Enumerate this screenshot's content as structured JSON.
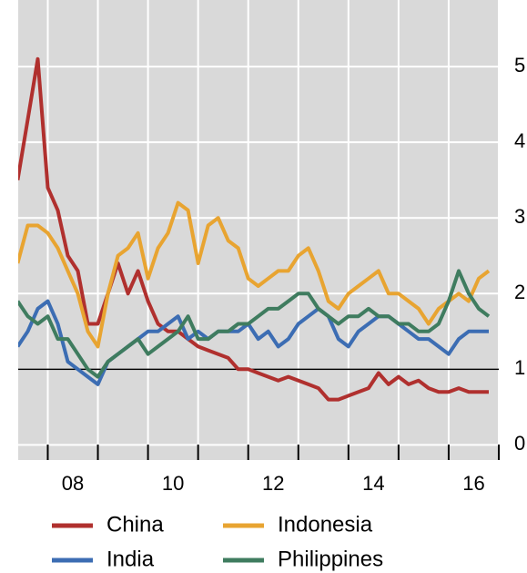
{
  "chart_data": {
    "type": "line",
    "x": [
      2007.4,
      2007.6,
      2007.8,
      2008,
      2008.2,
      2008.4,
      2008.6,
      2008.8,
      2009,
      2009.2,
      2009.4,
      2009.6,
      2009.8,
      2010,
      2010.2,
      2010.4,
      2010.6,
      2010.8,
      2011,
      2011.2,
      2011.4,
      2011.6,
      2011.8,
      2012,
      2012.2,
      2012.4,
      2012.6,
      2012.8,
      2013,
      2013.2,
      2013.4,
      2013.6,
      2013.8,
      2014,
      2014.2,
      2014.4,
      2014.6,
      2014.8,
      2015,
      2015.2,
      2015.4,
      2015.6,
      2015.8,
      2016,
      2016.2,
      2016.4,
      2016.6,
      2016.8
    ],
    "series": [
      {
        "name": "China",
        "color": "#b0302e",
        "values": [
          3.5,
          4.3,
          5.1,
          3.4,
          3.1,
          2.5,
          2.3,
          1.6,
          1.6,
          2.0,
          2.4,
          2.0,
          2.3,
          1.9,
          1.6,
          1.5,
          1.5,
          1.4,
          1.3,
          1.25,
          1.2,
          1.15,
          1.0,
          1.0,
          0.95,
          0.9,
          0.85,
          0.9,
          0.85,
          0.8,
          0.75,
          0.6,
          0.6,
          0.65,
          0.7,
          0.75,
          0.95,
          0.8,
          0.9,
          0.8,
          0.85,
          0.75,
          0.7,
          0.7,
          0.75,
          0.7,
          0.7,
          0.7
        ]
      },
      {
        "name": "India",
        "color": "#3c6db3",
        "values": [
          1.3,
          1.5,
          1.8,
          1.9,
          1.6,
          1.1,
          1.0,
          0.9,
          0.8,
          1.1,
          1.2,
          1.3,
          1.4,
          1.5,
          1.5,
          1.6,
          1.7,
          1.4,
          1.5,
          1.4,
          1.5,
          1.5,
          1.5,
          1.6,
          1.4,
          1.5,
          1.3,
          1.4,
          1.6,
          1.7,
          1.8,
          1.7,
          1.4,
          1.3,
          1.5,
          1.6,
          1.7,
          1.7,
          1.6,
          1.5,
          1.4,
          1.4,
          1.3,
          1.2,
          1.4,
          1.5,
          1.5,
          1.5
        ]
      },
      {
        "name": "Indonesia",
        "color": "#e8a431",
        "values": [
          2.4,
          2.9,
          2.9,
          2.8,
          2.6,
          2.3,
          2.0,
          1.5,
          1.3,
          2.0,
          2.5,
          2.6,
          2.8,
          2.2,
          2.6,
          2.8,
          3.2,
          3.1,
          2.4,
          2.9,
          3.0,
          2.7,
          2.6,
          2.2,
          2.1,
          2.2,
          2.3,
          2.3,
          2.5,
          2.6,
          2.3,
          1.9,
          1.8,
          2.0,
          2.1,
          2.2,
          2.3,
          2.0,
          2.0,
          1.9,
          1.8,
          1.6,
          1.8,
          1.9,
          2.0,
          1.9,
          2.2,
          2.3
        ]
      },
      {
        "name": "Philippines",
        "color": "#3f7c5f",
        "values": [
          1.9,
          1.7,
          1.6,
          1.7,
          1.4,
          1.4,
          1.2,
          1.0,
          0.9,
          1.1,
          1.2,
          1.3,
          1.4,
          1.2,
          1.3,
          1.4,
          1.5,
          1.7,
          1.4,
          1.4,
          1.5,
          1.5,
          1.6,
          1.6,
          1.7,
          1.8,
          1.8,
          1.9,
          2.0,
          2.0,
          1.8,
          1.7,
          1.6,
          1.7,
          1.7,
          1.8,
          1.7,
          1.7,
          1.6,
          1.6,
          1.5,
          1.5,
          1.6,
          1.9,
          2.3,
          2.0,
          1.8,
          1.7
        ]
      }
    ],
    "xlim": [
      2007.41,
      2017.0
    ],
    "xticks": [
      {
        "value": 2008.5,
        "label": "08"
      },
      {
        "value": 2010.5,
        "label": "10"
      },
      {
        "value": 2012.5,
        "label": "12"
      },
      {
        "value": 2014.5,
        "label": "14"
      },
      {
        "value": 2016.5,
        "label": "16"
      }
    ],
    "x_tick_marks": [
      2008,
      2009,
      2010,
      2011,
      2012,
      2013,
      2014,
      2015,
      2016,
      2017
    ],
    "ylim": [
      -0.2,
      5.88
    ],
    "yticks": [
      0,
      1,
      2,
      3,
      4,
      5
    ],
    "reference_line": 1,
    "grid": true,
    "legend": "bottom"
  }
}
